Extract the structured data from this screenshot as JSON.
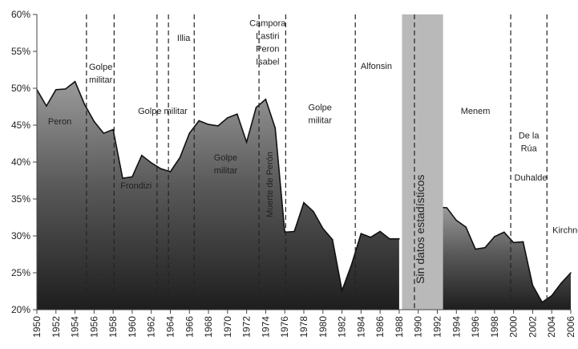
{
  "chart_data": {
    "type": "area",
    "title": "",
    "xlabel": "",
    "ylabel": "",
    "ylim": [
      20,
      60
    ],
    "xlim": [
      1950,
      2006
    ],
    "y_ticks": [
      "20%",
      "25%",
      "30%",
      "35%",
      "40%",
      "45%",
      "50%",
      "55%",
      "60%"
    ],
    "x_ticks": [
      "1950",
      "1952",
      "1954",
      "1956",
      "1958",
      "1960",
      "1962",
      "1964",
      "1966",
      "1968",
      "1970",
      "1972",
      "1974",
      "1976",
      "1978",
      "1980",
      "1982",
      "1984",
      "1986",
      "1988",
      "1990",
      "1992",
      "1994",
      "1996",
      "1998",
      "2000",
      "2002",
      "2004",
      "2006"
    ],
    "grid": false,
    "legend": "none",
    "fill_color_top": "#9a9a9a",
    "fill_color_bottom": "#1e1e1e",
    "gap_band_color": "#b9b9b9",
    "series": [
      {
        "segments": [
          [
            [
              1950,
              49.8
            ],
            [
              1951,
              47.6
            ],
            [
              1952,
              49.8
            ],
            [
              1953,
              49.9
            ],
            [
              1954,
              50.9
            ],
            [
              1955,
              47.8
            ],
            [
              1956,
              45.5
            ],
            [
              1957,
              43.9
            ],
            [
              1958,
              44.4
            ],
            [
              1959,
              37.8
            ],
            [
              1960,
              38.0
            ],
            [
              1961,
              40.9
            ],
            [
              1962,
              39.9
            ],
            [
              1963,
              39.1
            ],
            [
              1964,
              38.7
            ],
            [
              1965,
              40.6
            ],
            [
              1966,
              43.9
            ],
            [
              1967,
              45.6
            ],
            [
              1968,
              45.1
            ],
            [
              1969,
              44.9
            ],
            [
              1970,
              46.0
            ],
            [
              1971,
              46.5
            ],
            [
              1972,
              42.7
            ],
            [
              1973,
              47.4
            ],
            [
              1974,
              48.5
            ],
            [
              1975,
              44.6
            ],
            [
              1976,
              30.5
            ],
            [
              1977,
              30.6
            ],
            [
              1978,
              34.5
            ],
            [
              1979,
              33.3
            ],
            [
              1980,
              31.0
            ],
            [
              1981,
              29.5
            ],
            [
              1982,
              22.6
            ],
            [
              1983,
              26.1
            ],
            [
              1984,
              30.3
            ],
            [
              1985,
              29.8
            ],
            [
              1986,
              30.6
            ],
            [
              1987,
              29.6
            ],
            [
              1988,
              29.6
            ]
          ],
          [
            [
              1992,
              33.9
            ],
            [
              1993,
              33.8
            ],
            [
              1994,
              32.1
            ],
            [
              1995,
              31.2
            ],
            [
              1996,
              28.2
            ],
            [
              1997,
              28.4
            ],
            [
              1998,
              29.9
            ],
            [
              1999,
              30.5
            ],
            [
              2000,
              29.1
            ],
            [
              2001,
              29.2
            ],
            [
              2002,
              23.3
            ],
            [
              2003,
              21.0
            ],
            [
              2004,
              21.9
            ],
            [
              2005,
              23.6
            ],
            [
              2006,
              25.0
            ]
          ]
        ]
      }
    ],
    "gap_band": {
      "from": 1988.3,
      "to": 1992.6,
      "label": "Sin datos estadísticos"
    },
    "dividers": [
      1955.2,
      1958.1,
      1962.6,
      1963.8,
      1966.5,
      1973.3,
      1976.1,
      1983.4,
      1989.6,
      1999.7,
      2003.5
    ],
    "annotations": [
      {
        "id": "peron",
        "lines": [
          "Peron"
        ],
        "x": 1952.4,
        "y": 45.1
      },
      {
        "id": "golpe1",
        "lines": [
          "Golpe",
          "militar"
        ],
        "x": 1956.7,
        "y": 52.5
      },
      {
        "id": "frondizi",
        "lines": [
          "Frondizi"
        ],
        "x": 1960.4,
        "y": 36.4
      },
      {
        "id": "golpe2",
        "lines": [
          "Golpe militar"
        ],
        "x": 1963.2,
        "y": 46.5
      },
      {
        "id": "illia",
        "lines": [
          "Illia"
        ],
        "x": 1965.4,
        "y": 56.4
      },
      {
        "id": "golpe3",
        "lines": [
          "Golpe",
          "militar"
        ],
        "x": 1969.8,
        "y": 40.2
      },
      {
        "id": "campora",
        "lines": [
          "Campora",
          "Lastiri",
          "Peron",
          "Isabel"
        ],
        "x": 1974.2,
        "y": 58.4
      },
      {
        "id": "golpe4",
        "lines": [
          "Golpe",
          "militar"
        ],
        "x": 1979.7,
        "y": 47.0
      },
      {
        "id": "alfonsin",
        "lines": [
          "Alfonsin"
        ],
        "x": 1985.6,
        "y": 52.6
      },
      {
        "id": "menem",
        "lines": [
          "Menem"
        ],
        "x": 1996.0,
        "y": 46.5
      },
      {
        "id": "delarua",
        "lines": [
          "De la",
          "Rúa"
        ],
        "x": 2001.6,
        "y": 43.2
      },
      {
        "id": "duhalde",
        "lines": [
          "Duhalde"
        ],
        "x": 2001.8,
        "y": 37.5
      },
      {
        "id": "kirchner",
        "lines": [
          "Kirchner"
        ],
        "x": 2005.8,
        "y": 30.4
      }
    ],
    "rotated_labels": [
      {
        "id": "muerte",
        "text": "Muerte de Perón",
        "x": 1974.7,
        "y": 32.5
      },
      {
        "id": "sindatos",
        "text": "Sin datos estadísticos",
        "x": 1990.6,
        "y": 23.5
      }
    ]
  }
}
